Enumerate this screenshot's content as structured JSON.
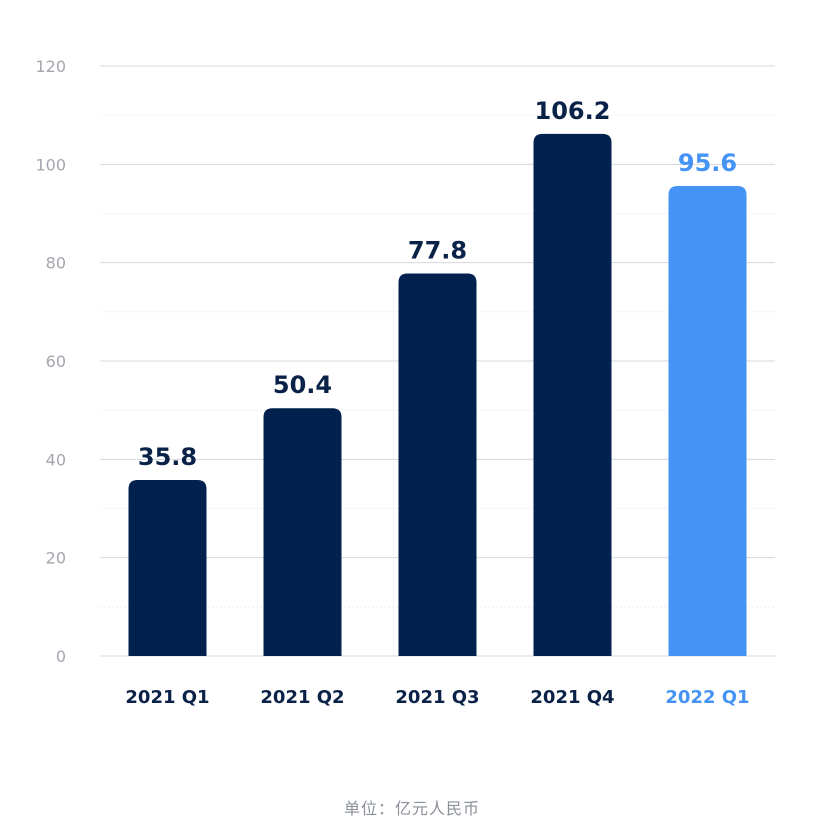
{
  "colors": {
    "bar_default": "#02214f",
    "bar_highlight": "#4593f5",
    "label_default": "#0b2248",
    "label_highlight": "#4593f5",
    "grid_major": "#d6d8dc",
    "grid_minor": "#eceef1",
    "tick_text": "#a3a6ad"
  },
  "chart_data": {
    "type": "bar",
    "title": "",
    "xlabel": "",
    "ylabel": "",
    "unit_note": "单位：亿元人民币",
    "categories": [
      "2021 Q1",
      "2021 Q2",
      "2021 Q3",
      "2021 Q4",
      "2022 Q1"
    ],
    "values": [
      35.8,
      50.4,
      77.8,
      106.2,
      95.6
    ],
    "value_labels": [
      "35.8",
      "50.4",
      "77.8",
      "106.2",
      "95.6"
    ],
    "highlight": [
      false,
      false,
      false,
      false,
      true
    ],
    "ylim": [
      0,
      120
    ],
    "yticks": [
      0,
      20,
      40,
      60,
      80,
      100,
      120
    ],
    "ytick_labels": [
      "0",
      "20",
      "40",
      "60",
      "80",
      "100",
      "120"
    ],
    "minor_grid_step": 10,
    "grid": true,
    "legend": "none"
  }
}
